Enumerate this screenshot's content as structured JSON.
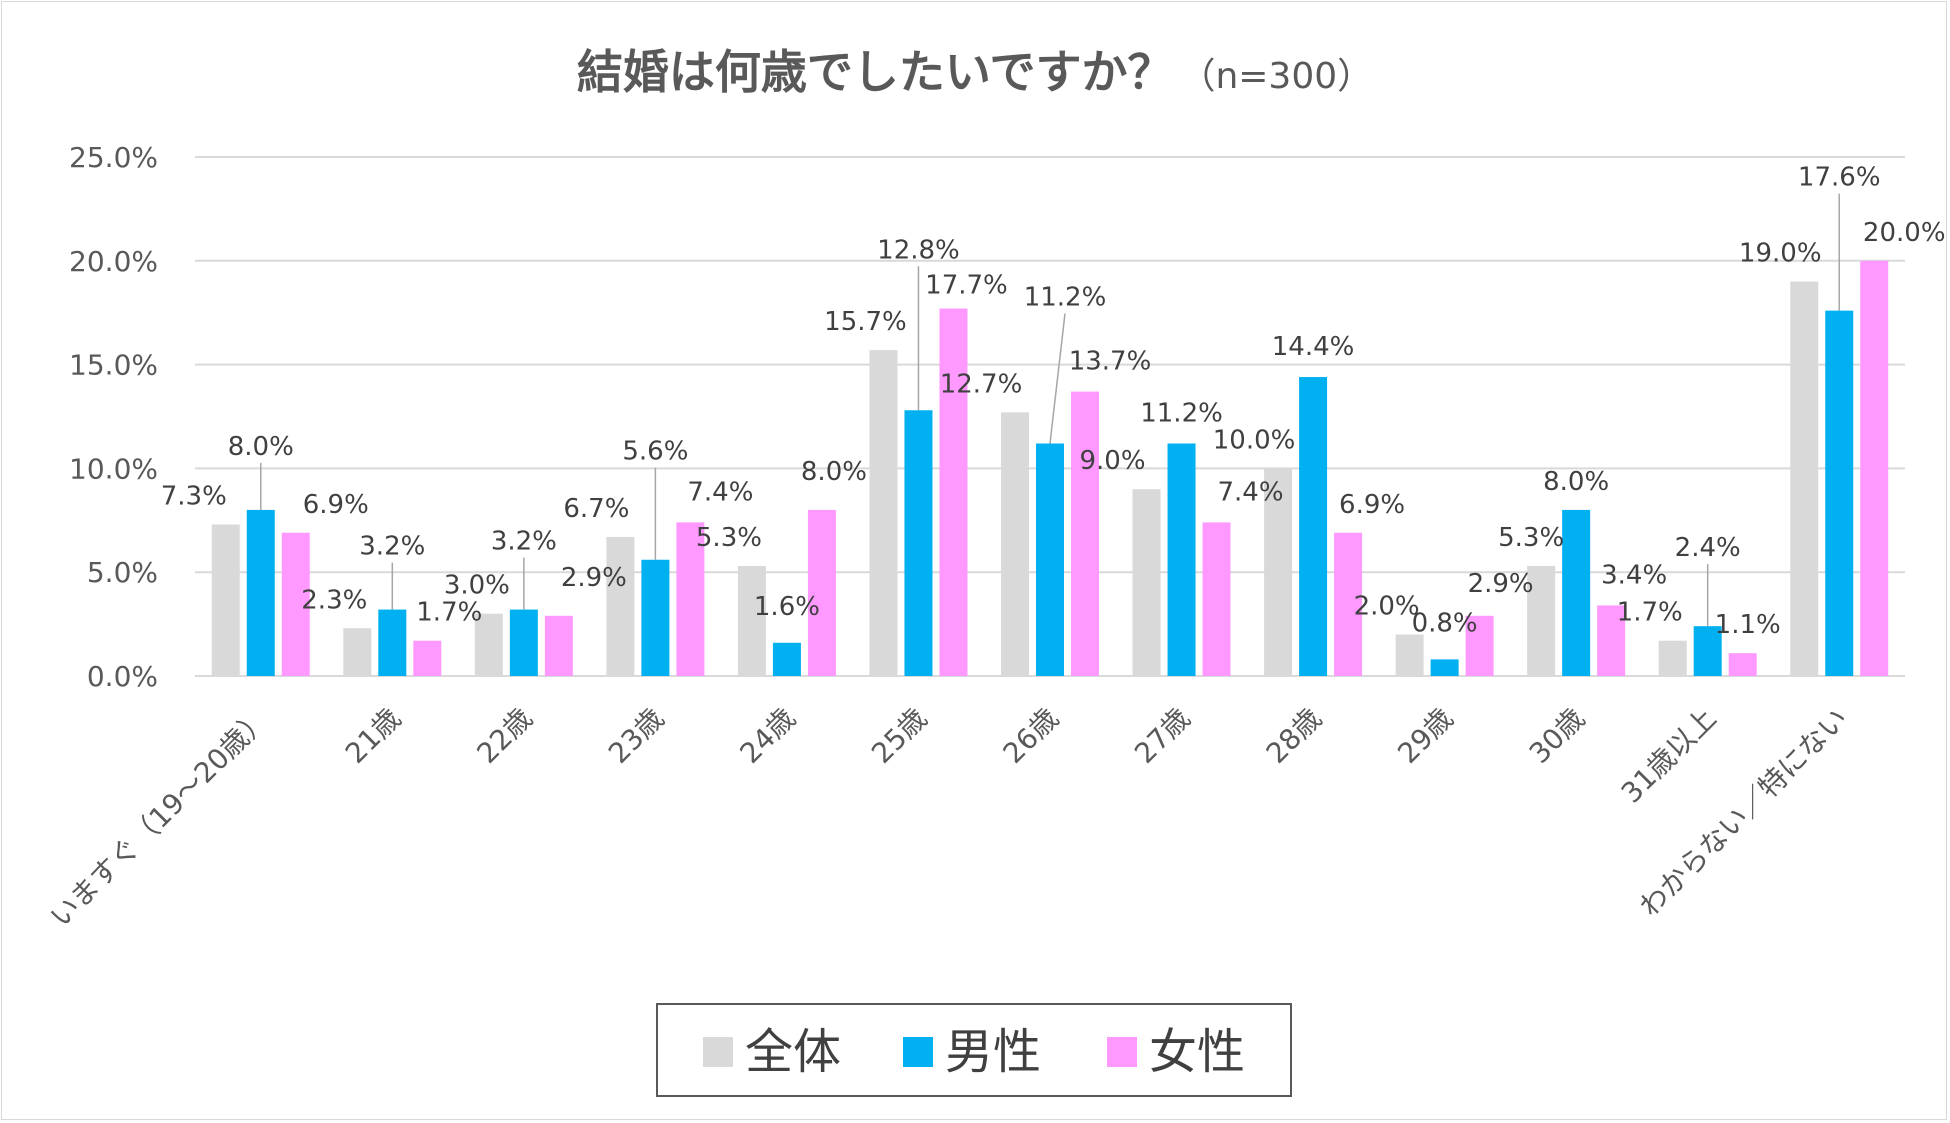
{
  "chart_data": {
    "type": "bar",
    "title": "結婚は何歳でしたいですか？",
    "subtitle": "（n=300）",
    "categories": [
      "いますぐ（19～20歳）",
      "21歳",
      "22歳",
      "23歳",
      "24歳",
      "25歳",
      "26歳",
      "27歳",
      "28歳",
      "29歳",
      "30歳",
      "31歳以上",
      "わからない／特にない"
    ],
    "series": [
      {
        "name": "全体",
        "color": "#d9d9d9",
        "values": [
          7.3,
          2.3,
          3.0,
          6.7,
          5.3,
          15.7,
          12.7,
          9.0,
          10.0,
          2.0,
          5.3,
          1.7,
          19.0
        ]
      },
      {
        "name": "男性",
        "color": "#00b0f0",
        "values": [
          8.0,
          3.2,
          3.2,
          5.6,
          1.6,
          12.8,
          11.2,
          11.2,
          14.4,
          0.8,
          8.0,
          2.4,
          17.6
        ]
      },
      {
        "name": "女性",
        "color": "#ff99ff",
        "values": [
          6.9,
          1.7,
          2.9,
          7.4,
          8.0,
          17.7,
          13.7,
          7.4,
          6.9,
          2.9,
          3.4,
          1.1,
          20.0
        ]
      }
    ],
    "yticks": [
      "0.0%",
      "5.0%",
      "10.0%",
      "15.0%",
      "20.0%",
      "25.0%"
    ],
    "ylim": [
      0,
      25
    ],
    "grid": true,
    "legend": "bottom-center",
    "xlabel": "",
    "ylabel": ""
  }
}
